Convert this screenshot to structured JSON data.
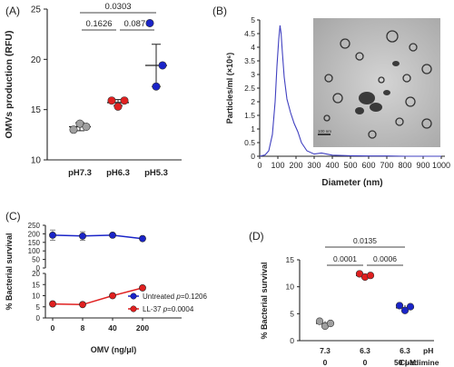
{
  "chart_data": [
    {
      "panel": "(A)",
      "type": "scatter",
      "ylabel": "OMVs production (RFU)",
      "ylim": [
        10,
        25
      ],
      "yticks": [
        10,
        15,
        20,
        25
      ],
      "categories": [
        "pH7.3",
        "pH6.3",
        "pH5.3"
      ],
      "series": [
        {
          "category": "pH7.3",
          "color": "#a0a0a0",
          "values": [
            13.0,
            13.6,
            13.3
          ],
          "mean": 13.3,
          "error": 0.4
        },
        {
          "category": "pH6.3",
          "color": "#e02020",
          "values": [
            15.9,
            15.3,
            15.9
          ],
          "mean": 15.7,
          "error": 0.3
        },
        {
          "category": "pH5.3",
          "color": "#1a24c8",
          "values": [
            23.6,
            17.3,
            19.4
          ],
          "mean": 19.4,
          "error": 2.1
        }
      ],
      "comparisons": [
        {
          "from": 0,
          "to": 2,
          "label": "0.0303"
        },
        {
          "from": 0,
          "to": 1,
          "label": "0.1626"
        },
        {
          "from": 1,
          "to": 2,
          "label": "0.0876"
        }
      ]
    },
    {
      "panel": "(B)",
      "type": "line",
      "ylabel": "Particles/ml (×10⁶)",
      "xlabel": "Diameter (nm)",
      "xlim": [
        0,
        1000
      ],
      "ylim": [
        0,
        5
      ],
      "xticks": [
        0,
        100,
        200,
        300,
        400,
        500,
        600,
        700,
        800,
        900,
        1000
      ],
      "yticks": [
        0,
        0.5,
        1,
        1.5,
        2,
        2.5,
        3,
        3.5,
        4,
        4.5,
        5
      ],
      "ytick_labels": [
        "0",
        "0.5",
        "1",
        "1.5",
        "2",
        "2.5",
        "3",
        "3.5",
        "4",
        "4.5",
        "5"
      ],
      "color": "#4040c0",
      "x": [
        0,
        30,
        50,
        70,
        85,
        95,
        105,
        112,
        118,
        125,
        135,
        150,
        170,
        190,
        210,
        230,
        260,
        300,
        340,
        400,
        500,
        600,
        700,
        800,
        900,
        1000
      ],
      "y": [
        0,
        0.05,
        0.2,
        0.8,
        2.0,
        3.3,
        4.3,
        4.8,
        4.5,
        3.8,
        2.9,
        2.1,
        1.6,
        1.2,
        0.9,
        0.5,
        0.2,
        0.08,
        0.12,
        0.04,
        0.02,
        0.01,
        0.01,
        0,
        0,
        0
      ],
      "inset": {
        "kind": "TEM micrograph",
        "scalebar": "100 nm"
      }
    },
    {
      "panel": "(C)",
      "type": "line",
      "ylabel": "% Bacterial survival",
      "xlabel": "OMV (ng/μl)",
      "categories": [
        "0",
        "8",
        "40",
        "200"
      ],
      "upper_ylim": [
        0,
        250
      ],
      "upper_yticks": [
        0,
        50,
        100,
        150,
        200,
        250
      ],
      "lower_ylim": [
        0,
        20
      ],
      "lower_yticks": [
        0,
        5,
        10,
        15,
        20
      ],
      "legend_position": "bottom-right",
      "series": [
        {
          "name": "Untreated",
          "color": "#1a24c8",
          "values": [
            192,
            187,
            192,
            172
          ],
          "errors": [
            30,
            25,
            10,
            5
          ],
          "p_label": "p",
          "p_value": "=0.1206"
        },
        {
          "name": "LL-37",
          "color": "#e02020",
          "values": [
            6.3,
            6.0,
            10.0,
            13.5
          ],
          "errors": [
            0.7,
            0.3,
            0.8,
            0.5
          ],
          "p_label": "p",
          "p_value": "=0.0004"
        }
      ]
    },
    {
      "panel": "(D)",
      "type": "scatter",
      "ylabel": "% Bacterial survival",
      "ylim": [
        0,
        15
      ],
      "yticks": [
        0,
        5,
        10,
        15
      ],
      "row_labels": {
        "pH": "pH",
        "treatment": "Cl-adimine"
      },
      "categories": [
        {
          "ph": "7.3",
          "treatment": "0"
        },
        {
          "ph": "6.3",
          "treatment": "0"
        },
        {
          "ph": "6.3",
          "treatment": "50 μM"
        }
      ],
      "series": [
        {
          "color": "#a0a0a0",
          "values": [
            3.6,
            2.7,
            3.2
          ],
          "mean": 3.2,
          "error": 0.4
        },
        {
          "color": "#e02020",
          "values": [
            12.4,
            11.8,
            12.1
          ],
          "mean": 12.1,
          "error": 0.3
        },
        {
          "color": "#1a24c8",
          "values": [
            6.5,
            5.6,
            6.3
          ],
          "mean": 6.1,
          "error": 0.5
        }
      ],
      "comparisons": [
        {
          "from": 0,
          "to": 2,
          "label": "0.0135"
        },
        {
          "from": 0,
          "to": 1,
          "label": "0.0001"
        },
        {
          "from": 1,
          "to": 2,
          "label": "0.0006"
        }
      ]
    }
  ]
}
